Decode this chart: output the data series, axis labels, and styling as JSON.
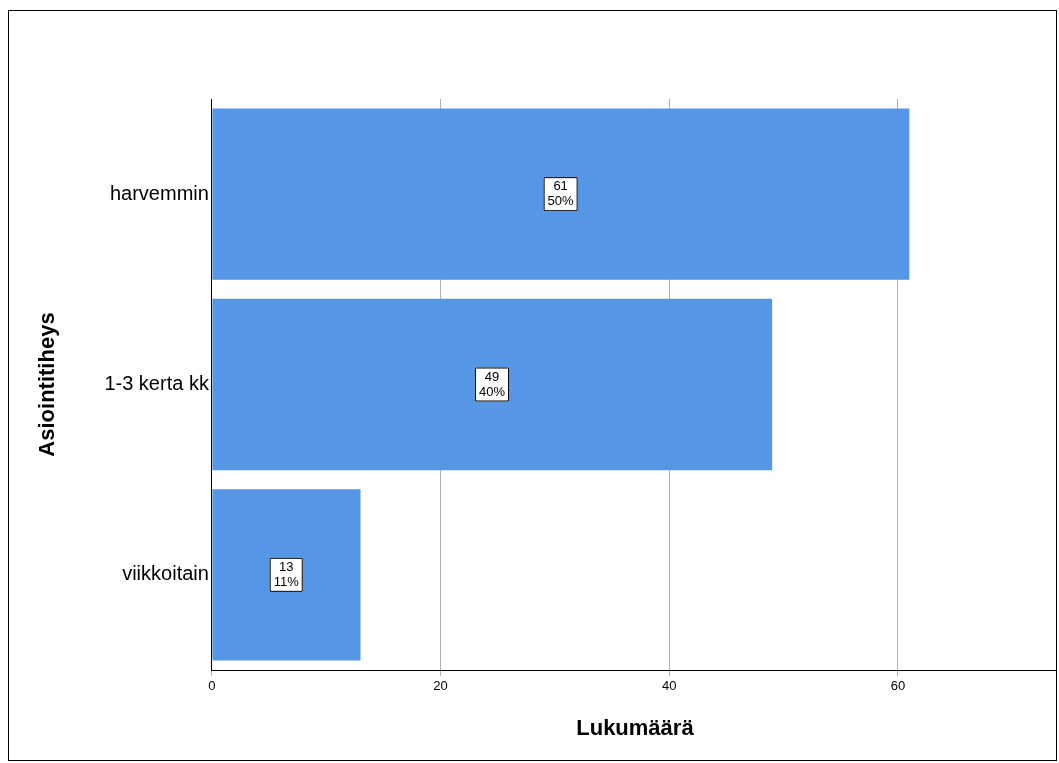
{
  "chart_data": {
    "type": "bar",
    "orientation": "horizontal",
    "xlabel": "Lukumäärä",
    "ylabel": "Asiointitiheys",
    "categories": [
      "harvemmin",
      "1-3 kerta kk",
      "viikkoitain"
    ],
    "values": [
      61,
      49,
      13
    ],
    "color": "#5596e5",
    "value_labels": [
      "61\n50%",
      "49\n40%",
      "13\n11%"
    ],
    "xlim": [
      0,
      74
    ],
    "xticks": [
      0,
      20,
      40,
      60
    ],
    "grid": "x",
    "legend": false
  }
}
